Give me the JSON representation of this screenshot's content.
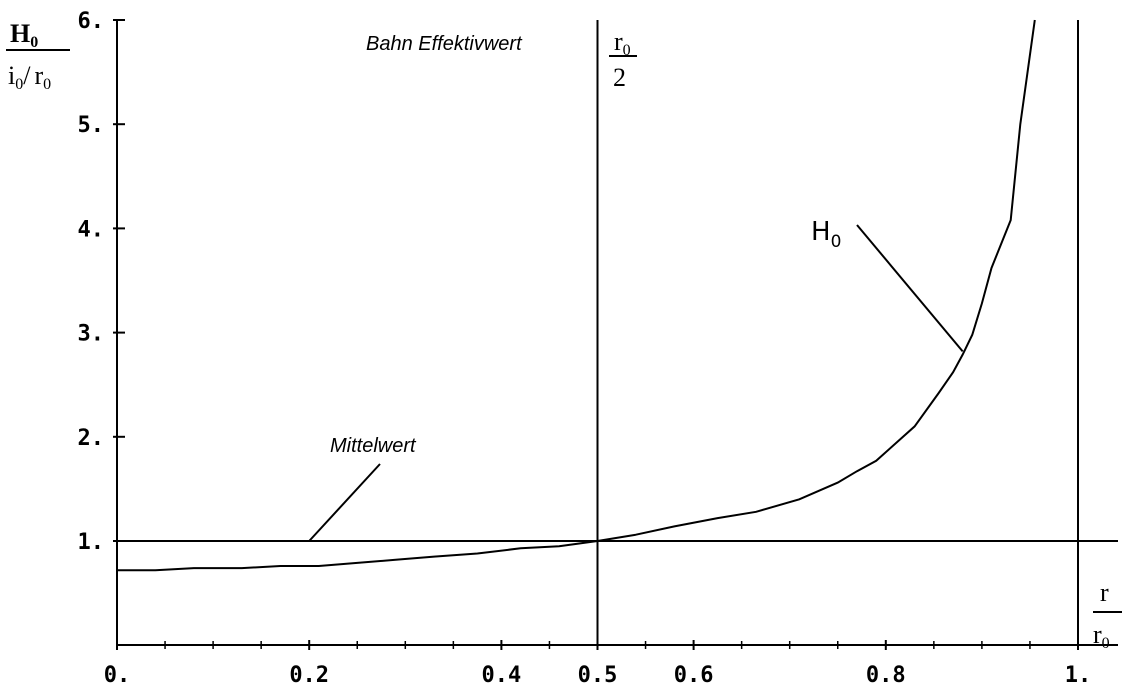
{
  "chart_data": {
    "type": "line",
    "y_axis_label": {
      "main": "H",
      "main_sub": "0",
      "num_i": "i",
      "num_i_sub": "0",
      "slash": "/",
      "num_r": "r",
      "num_r_sub": "0"
    },
    "x_axis_label": {
      "top": "r",
      "bottom": "r",
      "bottom_sub": "0"
    },
    "x_ticks": [
      {
        "value": 0,
        "label": "0."
      },
      {
        "value": 0.2,
        "label": "0.2"
      },
      {
        "value": 0.4,
        "label": "0.4"
      },
      {
        "value": 0.5,
        "label": "0.5"
      },
      {
        "value": 0.6,
        "label": "0.6"
      },
      {
        "value": 0.8,
        "label": "0.8"
      },
      {
        "value": 1.0,
        "label": "1."
      }
    ],
    "y_ticks": [
      {
        "value": 1,
        "label": "1."
      },
      {
        "value": 2,
        "label": "2."
      },
      {
        "value": 3,
        "label": "3."
      },
      {
        "value": 4,
        "label": "4."
      },
      {
        "value": 5,
        "label": "5."
      },
      {
        "value": 6,
        "label": "6."
      }
    ],
    "xlim": [
      0,
      1.05
    ],
    "ylim": [
      0,
      6
    ],
    "grid": false,
    "series": [
      {
        "name": "H0",
        "x": [
          0,
          0.04,
          0.08,
          0.13,
          0.17,
          0.21,
          0.25,
          0.29,
          0.33,
          0.375,
          0.42,
          0.46,
          0.5,
          0.54,
          0.58,
          0.625,
          0.665,
          0.71,
          0.75,
          0.77,
          0.79,
          0.83,
          0.855,
          0.87,
          0.88,
          0.89,
          0.9,
          0.91,
          0.93,
          0.94,
          0.955
        ],
        "y": [
          0.72,
          0.72,
          0.74,
          0.74,
          0.76,
          0.76,
          0.79,
          0.82,
          0.85,
          0.88,
          0.93,
          0.95,
          1.0,
          1.06,
          1.14,
          1.22,
          1.28,
          1.4,
          1.56,
          1.67,
          1.77,
          2.1,
          2.42,
          2.62,
          2.79,
          2.98,
          3.28,
          3.62,
          4.08,
          5.0,
          6.0
        ]
      }
    ],
    "reference_lines": [
      {
        "kind": "horizontal",
        "value": 1.0
      },
      {
        "kind": "vertical",
        "value": 0.5
      },
      {
        "kind": "vertical",
        "value": 1.0
      }
    ],
    "annotations": {
      "bahn": "Bahn Effektivwert",
      "mittelwert": "Mittelwert",
      "mittelwert_pointer": {
        "x": 0.2,
        "y": 1.0
      },
      "curve_label": "H",
      "curve_label_sub": "0",
      "curve_pointer": {
        "x": 0.88,
        "y": 2.82
      },
      "half_frac_top": "r",
      "half_frac_top_sub": "0",
      "half_frac_bottom": "2"
    }
  }
}
